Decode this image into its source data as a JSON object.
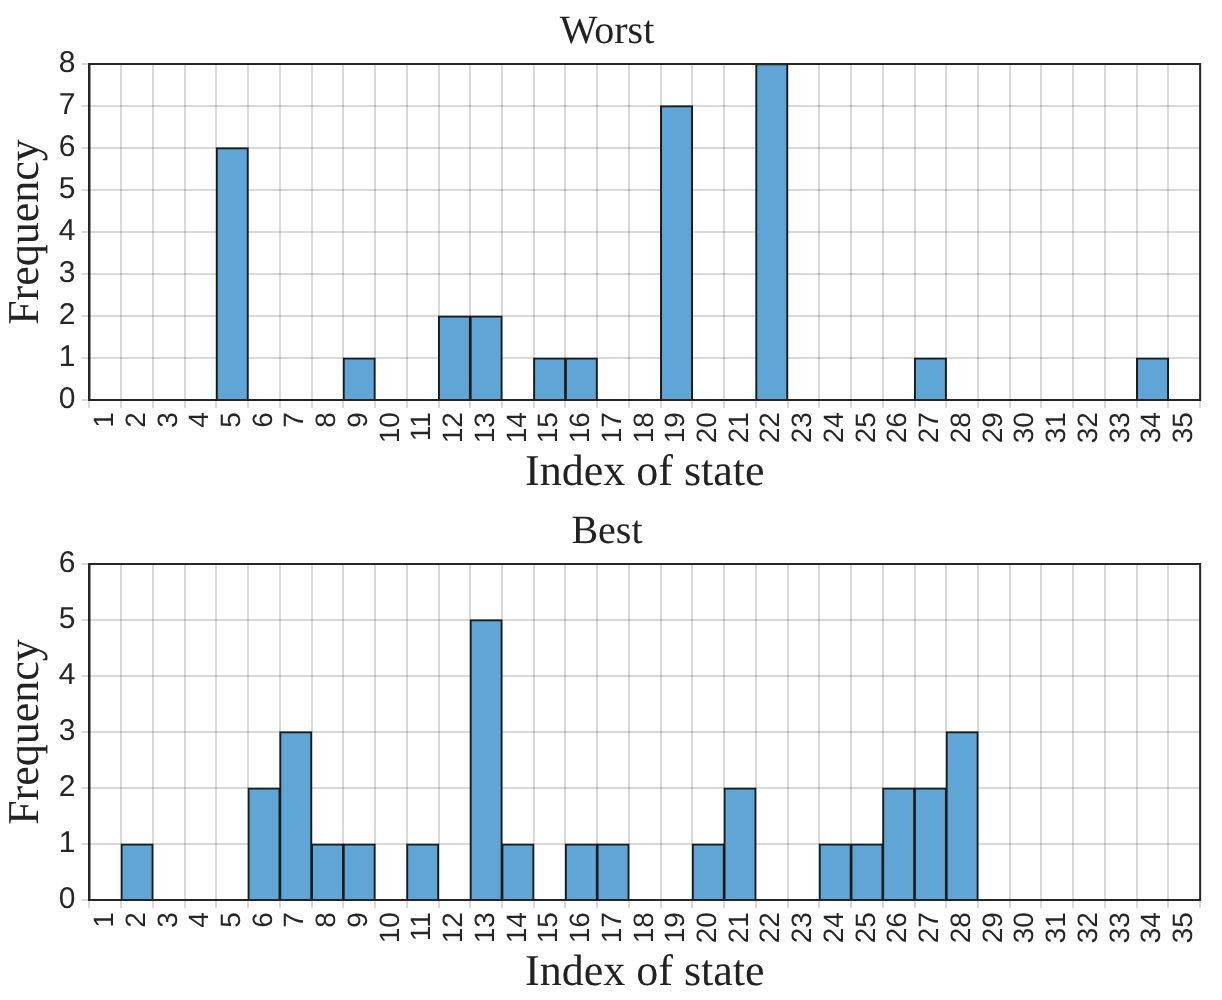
{
  "chart_data": [
    {
      "type": "histogram",
      "title": "Worst",
      "xlabel": "Index of state",
      "ylabel": "Frequency",
      "color": "#5fa6d6",
      "bins": [
        0.5,
        1.5,
        2.5,
        3.5,
        4.5,
        5.5,
        6.5,
        7.5,
        8.5,
        9.5,
        10.5,
        11.5,
        12.5,
        13.5,
        14.5,
        15.5,
        16.5,
        17.5,
        18.5,
        19.5,
        20.5,
        21.5,
        22.5,
        23.5,
        24.5,
        25.5,
        26.5,
        27.5,
        28.5,
        29.5,
        30.5,
        31.5,
        32.5,
        33.5,
        34.5,
        35.5
      ],
      "values": [
        0,
        0,
        0,
        0,
        6,
        0,
        0,
        0,
        1,
        0,
        0,
        2,
        2,
        0,
        1,
        1,
        0,
        0,
        7,
        0,
        0,
        8,
        0,
        0,
        0,
        0,
        1,
        0,
        0,
        0,
        0,
        0,
        0,
        1,
        0
      ],
      "xlim": [
        0.5,
        35.5
      ],
      "xticks": [
        1,
        2,
        3,
        4,
        5,
        6,
        7,
        8,
        9,
        10,
        11,
        12,
        13,
        14,
        15,
        16,
        17,
        18,
        19,
        20,
        21,
        22,
        23,
        24,
        25,
        26,
        27,
        28,
        29,
        30,
        31,
        32,
        33,
        34,
        35
      ],
      "ylim": [
        0,
        8
      ],
      "yticks": [
        0,
        1,
        2,
        3,
        4,
        5,
        6,
        7,
        8
      ],
      "grid": true
    },
    {
      "type": "histogram",
      "title": "Best",
      "xlabel": "Index of state",
      "ylabel": "Frequency",
      "color": "#5fa6d6",
      "bins": [
        0.5,
        1.5,
        2.5,
        3.5,
        4.5,
        5.5,
        6.5,
        7.5,
        8.5,
        9.5,
        10.5,
        11.5,
        12.5,
        13.5,
        14.5,
        15.5,
        16.5,
        17.5,
        18.5,
        19.5,
        20.5,
        21.5,
        22.5,
        23.5,
        24.5,
        25.5,
        26.5,
        27.5,
        28.5,
        29.5,
        30.5,
        31.5,
        32.5,
        33.5,
        34.5,
        35.5
      ],
      "values": [
        0,
        1,
        0,
        0,
        0,
        2,
        3,
        1,
        1,
        0,
        1,
        0,
        5,
        1,
        0,
        1,
        1,
        0,
        0,
        1,
        2,
        0,
        0,
        1,
        1,
        2,
        2,
        3,
        0,
        0,
        0,
        0,
        0,
        0,
        0
      ],
      "xlim": [
        0.5,
        35.5
      ],
      "xticks": [
        1,
        2,
        3,
        4,
        5,
        6,
        7,
        8,
        9,
        10,
        11,
        12,
        13,
        14,
        15,
        16,
        17,
        18,
        19,
        20,
        21,
        22,
        23,
        24,
        25,
        26,
        27,
        28,
        29,
        30,
        31,
        32,
        33,
        34,
        35
      ],
      "ylim": [
        0,
        6
      ],
      "yticks": [
        0,
        1,
        2,
        3,
        4,
        5,
        6
      ],
      "grid": true
    }
  ]
}
